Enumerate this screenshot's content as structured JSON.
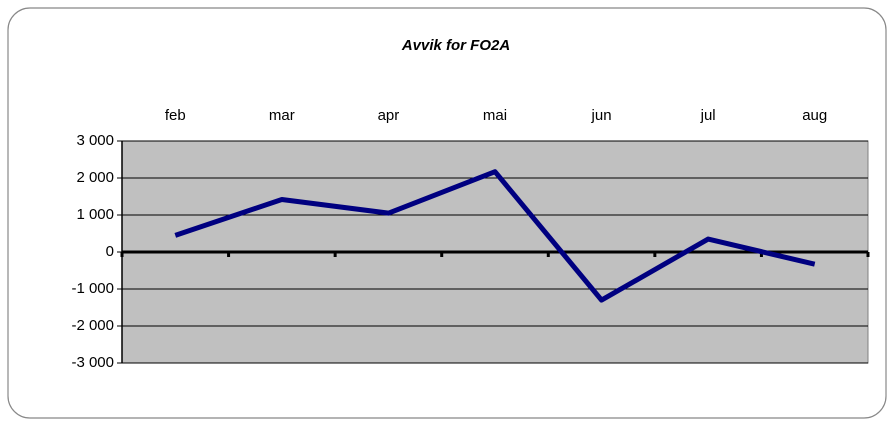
{
  "chart_data": {
    "type": "line",
    "title": "Avvik  for FO2A",
    "categories": [
      "feb",
      "mar",
      "apr",
      "mai",
      "jun",
      "jul",
      "aug"
    ],
    "series": [
      {
        "name": "Avvik",
        "color": "#000080",
        "values": [
          450,
          1420,
          1050,
          2170,
          -1300,
          350,
          -330
        ]
      }
    ],
    "ylim": [
      -3000,
      3000
    ],
    "yticks": [
      {
        "value": -3000,
        "label": "-3 000"
      },
      {
        "value": -2000,
        "label": "-2 000"
      },
      {
        "value": -1000,
        "label": "-1 000"
      },
      0,
      {
        "value": 1000,
        "label": "1 000"
      },
      {
        "value": 2000,
        "label": "2 000"
      },
      {
        "value": 3000,
        "label": "3 000"
      }
    ],
    "grid": true,
    "plot_background": "#c0c0c0"
  }
}
